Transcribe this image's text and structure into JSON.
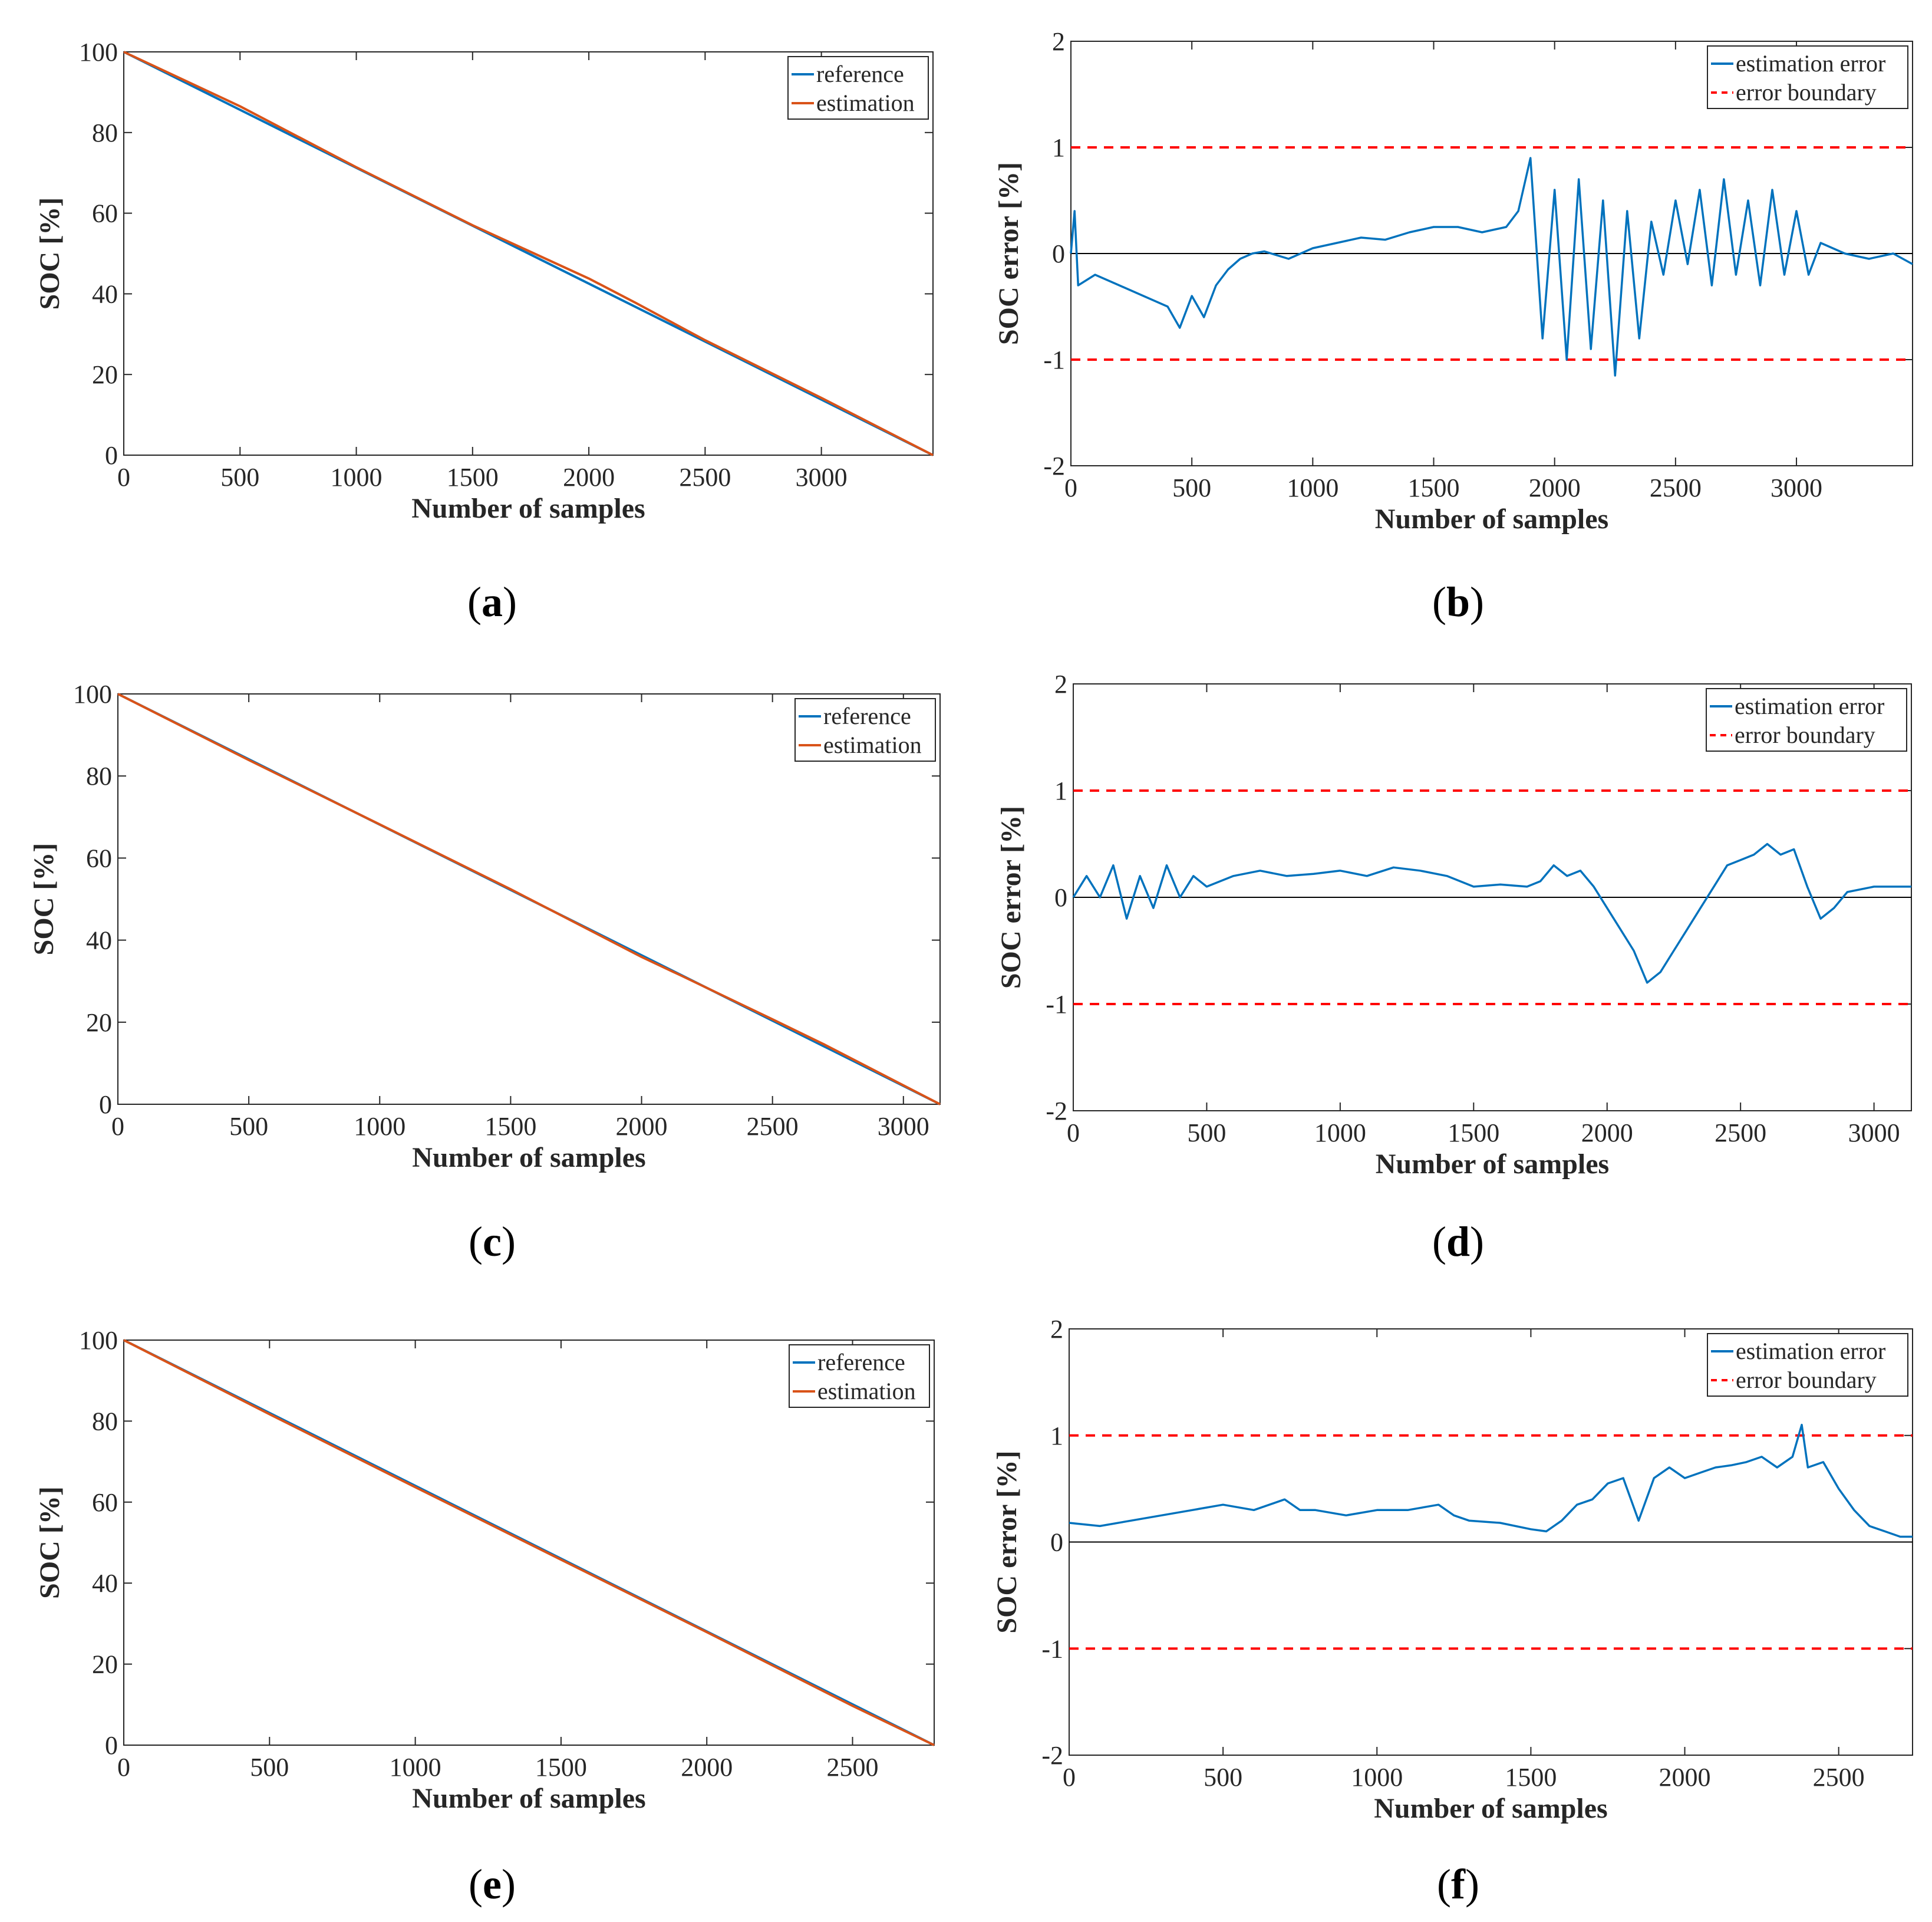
{
  "colors": {
    "reference": "#0072BD",
    "estimation": "#D95319",
    "error": "#0072BD",
    "boundary": "#FF0000",
    "zero_line": "#000000",
    "axes": "#262626"
  },
  "chart_data": [
    {
      "id": "a",
      "type": "line",
      "caption": "a",
      "xlabel": "Number of samples",
      "ylabel": "SOC [%]",
      "xlim": [
        0,
        3480
      ],
      "ylim": [
        0,
        100
      ],
      "xticks": [
        0,
        500,
        1000,
        1500,
        2000,
        2500,
        3000
      ],
      "yticks": [
        0,
        20,
        40,
        60,
        80,
        100
      ],
      "legend_position": "top-right",
      "series": [
        {
          "name": "reference",
          "x": [
            0,
            3480
          ],
          "values": [
            100,
            0
          ]
        },
        {
          "name": "estimation",
          "x": [
            0,
            500,
            1000,
            1500,
            2000,
            2200,
            2500,
            3000,
            3480
          ],
          "values": [
            100,
            86.5,
            71.4,
            57.0,
            43.8,
            37.8,
            28.5,
            14.2,
            0
          ]
        }
      ]
    },
    {
      "id": "b",
      "type": "line",
      "caption": "b",
      "xlabel": "Number of samples",
      "ylabel": "SOC error [%]",
      "xlim": [
        0,
        3480
      ],
      "ylim": [
        -2,
        2
      ],
      "xticks": [
        0,
        500,
        1000,
        1500,
        2000,
        2500,
        3000
      ],
      "yticks": [
        -2,
        -1,
        0,
        1,
        2
      ],
      "legend_position": "top-right",
      "boundary": [
        1,
        -1
      ],
      "series": [
        {
          "name": "estimation error",
          "x": [
            0,
            15,
            30,
            100,
            200,
            300,
            400,
            450,
            500,
            550,
            600,
            650,
            700,
            750,
            800,
            900,
            1000,
            1100,
            1200,
            1300,
            1400,
            1500,
            1600,
            1700,
            1800,
            1850,
            1900,
            1950,
            2000,
            2050,
            2100,
            2150,
            2200,
            2250,
            2300,
            2350,
            2400,
            2450,
            2500,
            2550,
            2600,
            2650,
            2700,
            2750,
            2800,
            2850,
            2900,
            2950,
            3000,
            3050,
            3100,
            3200,
            3300,
            3400,
            3480
          ],
          "values": [
            0.0,
            0.4,
            -0.3,
            -0.2,
            -0.3,
            -0.4,
            -0.5,
            -0.7,
            -0.4,
            -0.6,
            -0.3,
            -0.15,
            -0.05,
            0.0,
            0.02,
            -0.05,
            0.05,
            0.1,
            0.15,
            0.13,
            0.2,
            0.25,
            0.25,
            0.2,
            0.25,
            0.4,
            0.9,
            -0.8,
            0.6,
            -1.0,
            0.7,
            -0.9,
            0.5,
            -1.15,
            0.4,
            -0.8,
            0.3,
            -0.2,
            0.5,
            -0.1,
            0.6,
            -0.3,
            0.7,
            -0.2,
            0.5,
            -0.3,
            0.6,
            -0.2,
            0.4,
            -0.2,
            0.1,
            0.0,
            -0.05,
            0.0,
            -0.1
          ]
        }
      ]
    },
    {
      "id": "c",
      "type": "line",
      "caption": "c",
      "xlabel": "Number of samples",
      "ylabel": "SOC [%]",
      "xlim": [
        0,
        3140
      ],
      "ylim": [
        0,
        100
      ],
      "xticks": [
        0,
        500,
        1000,
        1500,
        2000,
        2500,
        3000
      ],
      "yticks": [
        0,
        20,
        40,
        60,
        80,
        100
      ],
      "legend_position": "top-right",
      "series": [
        {
          "name": "reference",
          "x": [
            0,
            3140
          ],
          "values": [
            100,
            0
          ]
        },
        {
          "name": "estimation",
          "x": [
            0,
            500,
            1000,
            1500,
            2000,
            2150,
            2500,
            2700,
            3140
          ],
          "values": [
            100,
            83.9,
            68.2,
            52.4,
            35.9,
            31.4,
            20.7,
            14.5,
            0
          ]
        }
      ]
    },
    {
      "id": "d",
      "type": "line",
      "caption": "d",
      "xlabel": "Number of samples",
      "ylabel": "SOC error [%]",
      "xlim": [
        0,
        3140
      ],
      "ylim": [
        -2,
        2
      ],
      "xticks": [
        0,
        500,
        1000,
        1500,
        2000,
        2500,
        3000
      ],
      "yticks": [
        -2,
        -1,
        0,
        1,
        2
      ],
      "legend_position": "top-right",
      "boundary": [
        1,
        -1
      ],
      "series": [
        {
          "name": "estimation error",
          "x": [
            0,
            50,
            100,
            150,
            200,
            250,
            300,
            350,
            400,
            450,
            500,
            600,
            700,
            800,
            900,
            1000,
            1100,
            1200,
            1300,
            1400,
            1500,
            1600,
            1700,
            1750,
            1800,
            1850,
            1900,
            1950,
            2000,
            2050,
            2100,
            2150,
            2200,
            2250,
            2300,
            2350,
            2400,
            2450,
            2500,
            2550,
            2600,
            2650,
            2700,
            2750,
            2800,
            2850,
            2900,
            3000,
            3100,
            3140
          ],
          "values": [
            0.0,
            0.2,
            0.0,
            0.3,
            -0.2,
            0.2,
            -0.1,
            0.3,
            0.0,
            0.2,
            0.1,
            0.2,
            0.25,
            0.2,
            0.22,
            0.25,
            0.2,
            0.28,
            0.25,
            0.2,
            0.1,
            0.12,
            0.1,
            0.15,
            0.3,
            0.2,
            0.25,
            0.1,
            -0.1,
            -0.3,
            -0.5,
            -0.8,
            -0.7,
            -0.5,
            -0.3,
            -0.1,
            0.1,
            0.3,
            0.35,
            0.4,
            0.5,
            0.4,
            0.45,
            0.1,
            -0.2,
            -0.1,
            0.05,
            0.1,
            0.1,
            0.1
          ]
        }
      ]
    },
    {
      "id": "e",
      "type": "line",
      "caption": "e",
      "xlabel": "Number of samples",
      "ylabel": "SOC [%]",
      "xlim": [
        0,
        2780
      ],
      "ylim": [
        0,
        100
      ],
      "xticks": [
        0,
        500,
        1000,
        1500,
        2000,
        2500
      ],
      "yticks": [
        0,
        20,
        40,
        60,
        80,
        100
      ],
      "legend_position": "top-right",
      "series": [
        {
          "name": "reference",
          "x": [
            0,
            2780
          ],
          "values": [
            100,
            0
          ]
        },
        {
          "name": "estimation",
          "x": [
            0,
            500,
            1000,
            1500,
            2000,
            2500,
            2780
          ],
          "values": [
            100,
            81.7,
            63.7,
            45.8,
            27.9,
            9.7,
            0
          ]
        }
      ]
    },
    {
      "id": "f",
      "type": "line",
      "caption": "f",
      "xlabel": "Number of samples",
      "ylabel": "SOC error [%]",
      "xlim": [
        0,
        2740
      ],
      "ylim": [
        -2,
        2
      ],
      "xticks": [
        0,
        500,
        1000,
        1500,
        2000,
        2500
      ],
      "yticks": [
        -2,
        -1,
        0,
        1,
        2
      ],
      "legend_position": "top-right",
      "boundary": [
        1,
        -1
      ],
      "series": [
        {
          "name": "estimation error",
          "x": [
            0,
            100,
            200,
            300,
            400,
            500,
            600,
            700,
            750,
            800,
            900,
            1000,
            1100,
            1200,
            1250,
            1300,
            1400,
            1500,
            1550,
            1600,
            1650,
            1700,
            1750,
            1800,
            1850,
            1900,
            1950,
            2000,
            2050,
            2100,
            2150,
            2200,
            2250,
            2300,
            2350,
            2380,
            2400,
            2450,
            2500,
            2550,
            2600,
            2650,
            2700,
            2740
          ],
          "values": [
            0.18,
            0.15,
            0.2,
            0.25,
            0.3,
            0.35,
            0.3,
            0.4,
            0.3,
            0.3,
            0.25,
            0.3,
            0.3,
            0.35,
            0.25,
            0.2,
            0.18,
            0.12,
            0.1,
            0.2,
            0.35,
            0.4,
            0.55,
            0.6,
            0.2,
            0.6,
            0.7,
            0.6,
            0.65,
            0.7,
            0.72,
            0.75,
            0.8,
            0.7,
            0.8,
            1.1,
            0.7,
            0.75,
            0.5,
            0.3,
            0.15,
            0.1,
            0.05,
            0.05
          ]
        }
      ]
    }
  ]
}
